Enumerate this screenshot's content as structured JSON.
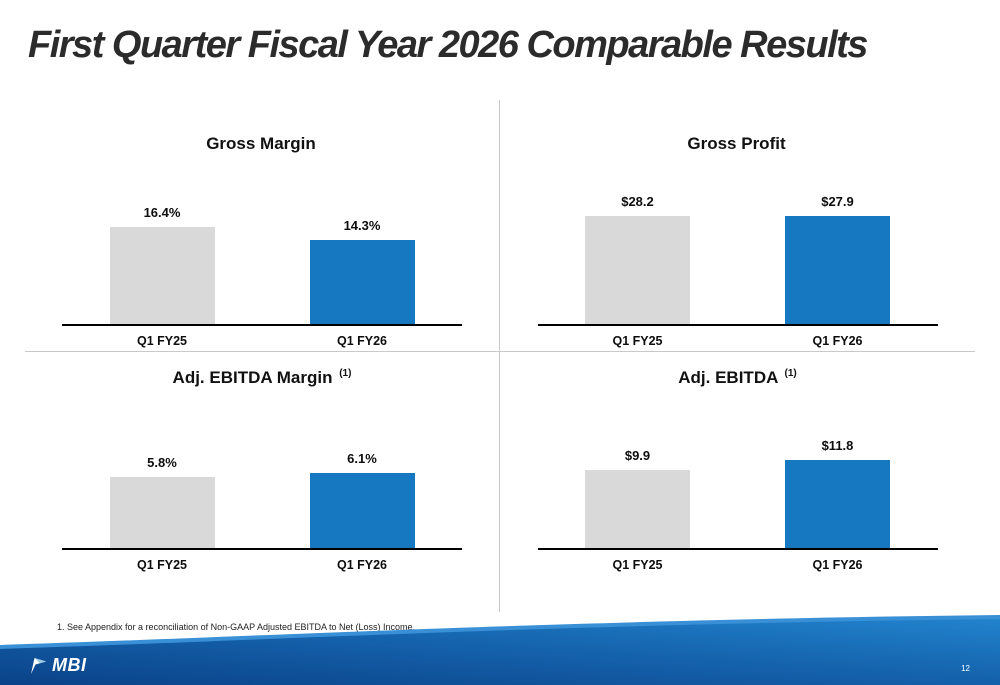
{
  "slide": {
    "title": "First Quarter Fiscal Year 2026 Comparable Results",
    "footnote": "1. See Appendix for a reconciliation of Non-GAAP Adjusted EBITDA to Net (Loss) Income.",
    "page_number": "12",
    "logo": "MBI"
  },
  "colors": {
    "bar_prior": "#d9d9d9",
    "bar_current": "#1778c2",
    "footer_dark": "#0a4288",
    "footer_mid": "#1563ad",
    "footer_light": "#2283cd",
    "title_text": "#2b2b2b"
  },
  "chart_data": [
    {
      "type": "bar",
      "title": "Gross Margin",
      "categories": [
        "Q1 FY25",
        "Q1 FY26"
      ],
      "values": [
        16.4,
        14.3
      ],
      "labels": [
        "16.4%",
        "14.3%"
      ],
      "series_names": [
        "Q1 FY25",
        "Q1 FY26"
      ],
      "ylim": [
        0,
        22
      ],
      "ylabel": "",
      "xlabel": ""
    },
    {
      "type": "bar",
      "title": "Gross Profit",
      "categories": [
        "Q1 FY25",
        "Q1 FY26"
      ],
      "values": [
        28.2,
        27.9
      ],
      "labels": [
        "$28.2",
        "$27.9"
      ],
      "series_names": [
        "Q1 FY25",
        "Q1 FY26"
      ],
      "ylim": [
        0,
        33
      ],
      "ylabel": "",
      "xlabel": ""
    },
    {
      "type": "bar",
      "title": "Adj. EBITDA Margin",
      "title_superscript": "(1)",
      "categories": [
        "Q1 FY25",
        "Q1 FY26"
      ],
      "values": [
        5.8,
        6.1
      ],
      "labels": [
        "5.8%",
        "6.1%"
      ],
      "series_names": [
        "Q1 FY25",
        "Q1 FY26"
      ],
      "ylim": [
        0,
        9
      ],
      "ylabel": "",
      "xlabel": ""
    },
    {
      "type": "bar",
      "title": "Adj. EBITDA",
      "title_superscript": "(1)",
      "categories": [
        "Q1 FY25",
        "Q1 FY26"
      ],
      "values": [
        9.9,
        11.8
      ],
      "labels": [
        "$9.9",
        "$11.8"
      ],
      "series_names": [
        "Q1 FY25",
        "Q1 FY26"
      ],
      "ylim": [
        0,
        14
      ],
      "ylabel": "",
      "xlabel": ""
    }
  ]
}
